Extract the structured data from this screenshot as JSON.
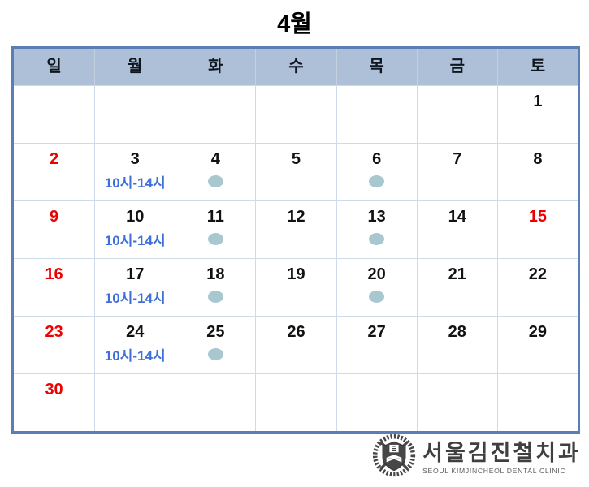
{
  "title": "4월",
  "colors": {
    "header_bg": "#aec0d8",
    "outer_border": "#5b7fb5",
    "grid_line": "#ccdaea",
    "date_text": "#121212",
    "sunday_red": "#ee0000",
    "note_blue": "#3e6fd8",
    "dot_fill": "#a9c7cf"
  },
  "calendar": {
    "weekdays": [
      "일",
      "월",
      "화",
      "수",
      "목",
      "금",
      "토"
    ],
    "note_label": "10시-14시",
    "weeks": [
      [
        {
          "date": ""
        },
        {
          "date": ""
        },
        {
          "date": ""
        },
        {
          "date": ""
        },
        {
          "date": ""
        },
        {
          "date": ""
        },
        {
          "date": "1"
        }
      ],
      [
        {
          "date": "2",
          "red": true
        },
        {
          "date": "3",
          "note": "10시-14시"
        },
        {
          "date": "4",
          "dot": true
        },
        {
          "date": "5"
        },
        {
          "date": "6",
          "dot": true
        },
        {
          "date": "7"
        },
        {
          "date": "8"
        }
      ],
      [
        {
          "date": "9",
          "red": true
        },
        {
          "date": "10",
          "note": "10시-14시"
        },
        {
          "date": "11",
          "dot": true
        },
        {
          "date": "12"
        },
        {
          "date": "13",
          "dot": true
        },
        {
          "date": "14"
        },
        {
          "date": "15",
          "red": true
        }
      ],
      [
        {
          "date": "16",
          "red": true
        },
        {
          "date": "17",
          "note": "10시-14시"
        },
        {
          "date": "18",
          "dot": true
        },
        {
          "date": "19"
        },
        {
          "date": "20",
          "dot": true
        },
        {
          "date": "21"
        },
        {
          "date": "22"
        }
      ],
      [
        {
          "date": "23",
          "red": true
        },
        {
          "date": "24",
          "note": "10시-14시"
        },
        {
          "date": "25",
          "dot": true
        },
        {
          "date": "26"
        },
        {
          "date": "27"
        },
        {
          "date": "28"
        },
        {
          "date": "29"
        }
      ],
      [
        {
          "date": "30",
          "red": true
        },
        {
          "date": ""
        },
        {
          "date": ""
        },
        {
          "date": ""
        },
        {
          "date": ""
        },
        {
          "date": ""
        },
        {
          "date": ""
        }
      ]
    ]
  },
  "logo": {
    "korean_name": "서울김진철치과",
    "english_name": "SEOUL KIMJINCHEOL DENTAL CLINIC"
  }
}
